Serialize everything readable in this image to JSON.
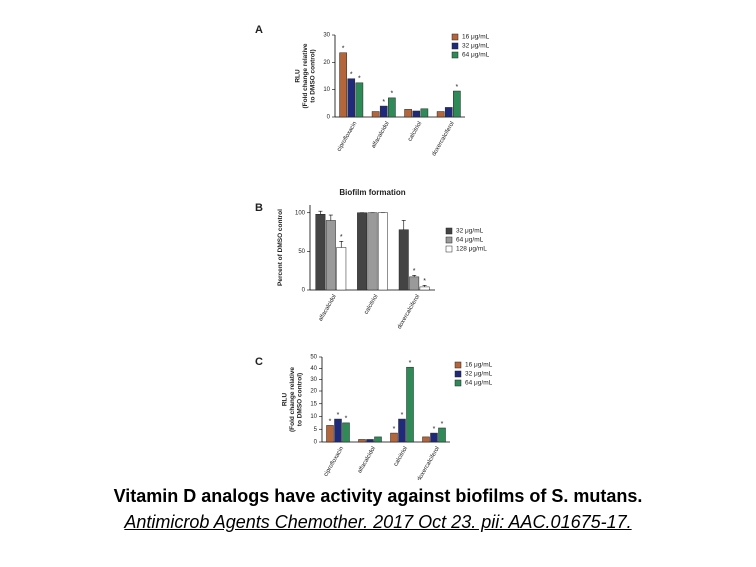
{
  "chart_data": [
    {
      "type": "bar",
      "label": "A",
      "ylabel": [
        "RLU",
        "(Fold change relative",
        "to DMSO control)"
      ],
      "categories": [
        "ciprofloxacin",
        "alfacalcidol",
        "calcitriol",
        "doxercalciferol"
      ],
      "ylim": [
        0,
        30
      ],
      "yticks": [
        0,
        10,
        20,
        30
      ],
      "series": [
        {
          "name": "16 μg/mL",
          "color": "#b5653a",
          "values": [
            23.5,
            2,
            2.8,
            2
          ],
          "significance": [
            "*",
            null,
            null,
            null
          ]
        },
        {
          "name": "32 μg/mL",
          "color": "#1f2a7a",
          "values": [
            14,
            4,
            2.2,
            3.5
          ],
          "significance": [
            "*",
            "*",
            null,
            null
          ]
        },
        {
          "name": "64 μg/mL",
          "color": "#2e8b57",
          "values": [
            12.5,
            7,
            3,
            9.5
          ],
          "significance": [
            "*",
            "*",
            null,
            "*"
          ]
        }
      ]
    },
    {
      "type": "bar",
      "label": "B",
      "title": "Biofilm formation",
      "ylabel": [
        "Percent of DMSO control"
      ],
      "categories": [
        "alfacalcidol",
        "calcitriol",
        "doxercalciferol"
      ],
      "ylim": [
        0,
        110
      ],
      "yticks": [
        0,
        50,
        100
      ],
      "series": [
        {
          "name": "32 μg/mL",
          "color": "#444444",
          "values": [
            98,
            100,
            78
          ],
          "errors": [
            4,
            0,
            12
          ],
          "significance": [
            null,
            null,
            null
          ]
        },
        {
          "name": "64 μg/mL",
          "color": "#9a9a9a",
          "values": [
            90,
            100,
            17
          ],
          "errors": [
            7,
            0,
            2
          ],
          "significance": [
            null,
            null,
            "*"
          ]
        },
        {
          "name": "128 μg/mL",
          "color": "#ffffff",
          "values": [
            55,
            100,
            4
          ],
          "errors": [
            8,
            0,
            2
          ],
          "significance": [
            "*",
            null,
            "*"
          ]
        }
      ]
    },
    {
      "type": "bar",
      "label": "C",
      "ylabel": [
        "RLU",
        "(Fold change relative",
        "to DMSO control)"
      ],
      "categories": [
        "ciprofloxacin",
        "alfacalcidol",
        "calcitriol",
        "doxercalciferol"
      ],
      "ylim": [
        0,
        50
      ],
      "ybreak": 20,
      "yticks": [
        0,
        5,
        10,
        15,
        20,
        30,
        40,
        50
      ],
      "series": [
        {
          "name": "16 μg/mL",
          "color": "#b5653a",
          "values": [
            6.5,
            1,
            3.5,
            2
          ],
          "significance": [
            "*",
            null,
            "*",
            null
          ]
        },
        {
          "name": "32 μg/mL",
          "color": "#1f2a7a",
          "values": [
            9,
            1,
            9,
            3.5
          ],
          "significance": [
            "*",
            null,
            "*",
            "*"
          ]
        },
        {
          "name": "64 μg/mL",
          "color": "#2e8b57",
          "values": [
            7.5,
            2,
            41,
            5.5
          ],
          "significance": [
            "*",
            null,
            "*",
            "*"
          ]
        }
      ]
    }
  ],
  "caption": {
    "title": "Vitamin D analogs have activity against biofilms of S. mutans.",
    "citation": "Antimicrob Agents Chemother. 2017 Oct 23. pii: AAC.01675-17."
  }
}
